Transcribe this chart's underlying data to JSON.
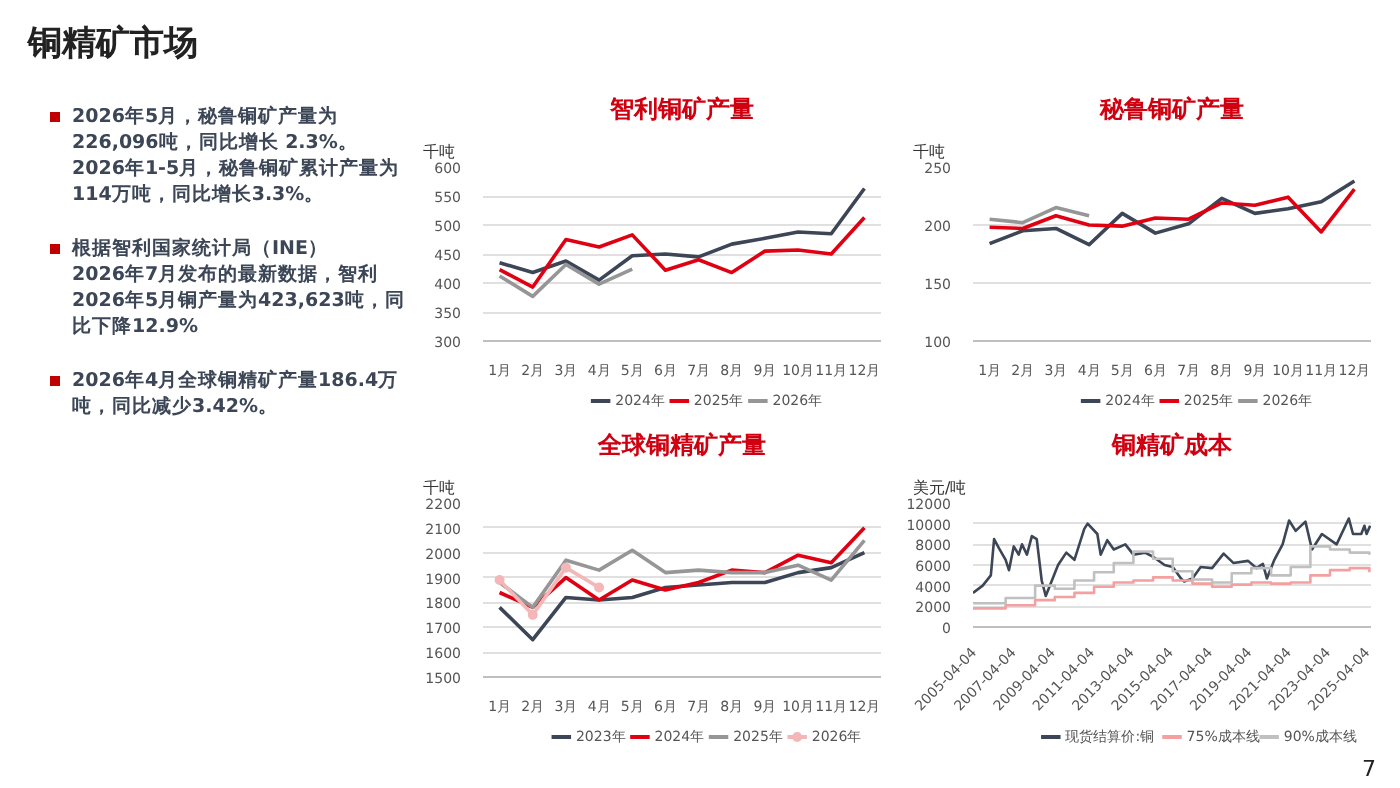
{
  "chart_data": [
    {
      "type": "other",
      "title": "铜精矿市场",
      "annotations": [
        "2026年5月，秘鲁铜矿产量为226,096吨，同比增长 2.3%。\n2026年1-5月，秘鲁铜矿累计产量为 114万吨，同比增长3.3%。",
        "根据智利国家统计局（INE）\n2026年7月发布的最新数据，智利2026年5月铜产量为423,623吨，同比下降12.9%",
        "2026年4月全球铜精矿产量186.4万吨，同比减少3.42%。",
        "7"
      ]
    },
    {
      "type": "line",
      "title": "智利铜矿产量",
      "ylabel": "千吨",
      "categories": [
        "1月",
        "2月",
        "3月",
        "4月",
        "5月",
        "6月",
        "7月",
        "8月",
        "9月",
        "10月",
        "11月",
        "12月"
      ],
      "ylim": [
        300,
        600
      ],
      "yticks": [
        300,
        350,
        400,
        450,
        500,
        550,
        600
      ],
      "grid": "y",
      "legend": "bottom",
      "series": [
        {
          "name": "2024年",
          "color": "#3c4656",
          "values": [
            435,
            418,
            438,
            405,
            447,
            450,
            445,
            467,
            477,
            488,
            485,
            563
          ]
        },
        {
          "name": "2025年",
          "color": "#e00012",
          "values": [
            423,
            393,
            475,
            462,
            483,
            422,
            440,
            418,
            455,
            457,
            450,
            513
          ]
        },
        {
          "name": "2026年",
          "color": "#969696",
          "values": [
            412,
            377,
            432,
            398,
            424,
            null,
            null,
            null,
            null,
            null,
            null,
            null
          ]
        }
      ]
    },
    {
      "type": "line",
      "title": "秘鲁铜矿产量",
      "ylabel": "千吨",
      "categories": [
        "1月",
        "2月",
        "3月",
        "4月",
        "5月",
        "6月",
        "7月",
        "8月",
        "9月",
        "10月",
        "11月",
        "12月"
      ],
      "ylim": [
        100,
        250
      ],
      "yticks": [
        100,
        150,
        200,
        250
      ],
      "grid": "y",
      "legend": "bottom",
      "series": [
        {
          "name": "2024年",
          "color": "#3c4656",
          "values": [
            184,
            195,
            197,
            183,
            210,
            193,
            201,
            223,
            210,
            214,
            220,
            238
          ]
        },
        {
          "name": "2025年",
          "color": "#e00012",
          "values": [
            198,
            197,
            208,
            200,
            199,
            206,
            205,
            219,
            217,
            224,
            194,
            231
          ]
        },
        {
          "name": "2026年",
          "color": "#969696",
          "values": [
            205,
            202,
            215,
            208,
            null,
            null,
            null,
            null,
            null,
            null,
            null,
            null
          ]
        }
      ]
    },
    {
      "type": "line",
      "title": "全球铜精矿产量",
      "ylabel": "千吨",
      "categories": [
        "1月",
        "2月",
        "3月",
        "4月",
        "5月",
        "6月",
        "7月",
        "8月",
        "9月",
        "10月",
        "11月",
        "12月"
      ],
      "ylim": [
        1500,
        2200
      ],
      "yticks": [
        1500,
        1600,
        1700,
        1800,
        1900,
        2000,
        2100,
        2200
      ],
      "grid": "y",
      "legend": "bottom",
      "series": [
        {
          "name": "2023年",
          "color": "#3c4656",
          "values": [
            1780,
            1650,
            1820,
            1810,
            1820,
            1860,
            1870,
            1880,
            1880,
            1920,
            1940,
            2000
          ]
        },
        {
          "name": "2024年",
          "color": "#e00012",
          "values": [
            1840,
            1780,
            1900,
            1810,
            1890,
            1850,
            1880,
            1930,
            1920,
            1990,
            1960,
            2100
          ]
        },
        {
          "name": "2025年",
          "color": "#969696",
          "values": [
            1880,
            1780,
            1970,
            1930,
            2010,
            1920,
            1930,
            1920,
            1920,
            1950,
            1890,
            2050
          ]
        },
        {
          "name": "2026年",
          "color": "#f4b6b6",
          "marker": "circle",
          "values": [
            1890,
            1750,
            1940,
            1860,
            null,
            null,
            null,
            null,
            null,
            null,
            null,
            null
          ]
        }
      ]
    },
    {
      "type": "line",
      "title": "铜精矿成本",
      "ylabel": "美元/吨",
      "xlim": [
        "2005-04-04",
        "2025-07-01"
      ],
      "xticks": [
        "2005-04-04",
        "2007-04-04",
        "2009-04-04",
        "2011-04-04",
        "2013-04-04",
        "2015-04-04",
        "2017-04-04",
        "2019-04-04",
        "2021-04-04",
        "2023-04-04",
        "2025-04-04"
      ],
      "ylim": [
        0,
        12000
      ],
      "yticks": [
        0,
        2000,
        4000,
        6000,
        8000,
        10000,
        12000
      ],
      "grid": "y",
      "legend": "bottom",
      "series": [
        {
          "name": "现货结算价:铜",
          "type": "line",
          "color": "#3c4656",
          "x": [
            "2005-04-04",
            "2005-10-01",
            "2006-03-01",
            "2006-05-01",
            "2006-08-01",
            "2006-12-01",
            "2007-02-01",
            "2007-05-01",
            "2007-08-01",
            "2007-10-01",
            "2008-01-01",
            "2008-04-01",
            "2008-07-01",
            "2008-10-01",
            "2008-12-15",
            "2009-03-01",
            "2009-08-01",
            "2010-01-01",
            "2010-06-01",
            "2010-12-01",
            "2011-02-01",
            "2011-08-01",
            "2011-10-01",
            "2012-02-01",
            "2012-06-01",
            "2013-01-01",
            "2013-06-01",
            "2014-01-01",
            "2014-06-01",
            "2015-01-01",
            "2015-06-01",
            "2015-11-01",
            "2016-01-01",
            "2016-06-01",
            "2016-11-01",
            "2017-06-01",
            "2018-01-01",
            "2018-07-01",
            "2019-04-01",
            "2019-09-01",
            "2020-01-01",
            "2020-03-15",
            "2020-08-01",
            "2021-01-01",
            "2021-05-01",
            "2021-09-01",
            "2022-03-01",
            "2022-07-01",
            "2023-01-01",
            "2023-10-01",
            "2024-05-15",
            "2024-08-01",
            "2025-01-01",
            "2025-03-01",
            "2025-04-10",
            "2025-06-15"
          ],
          "values": [
            3300,
            4000,
            5000,
            8500,
            7600,
            6500,
            5500,
            7800,
            7000,
            8000,
            7000,
            8800,
            8500,
            4500,
            3000,
            4000,
            6000,
            7200,
            6500,
            9500,
            10000,
            9000,
            7000,
            8400,
            7500,
            8000,
            7000,
            7200,
            6800,
            6000,
            5800,
            4700,
            4400,
            4700,
            5800,
            5700,
            7100,
            6200,
            6400,
            5700,
            6100,
            4700,
            6500,
            8000,
            10300,
            9300,
            10200,
            7500,
            9000,
            8000,
            10500,
            9000,
            9000,
            9800,
            9000,
            9800
          ]
        },
        {
          "name": "75%成本线",
          "type": "step",
          "color": "#f4a0a0",
          "x": [
            "2005-04-04",
            "2006-12-01",
            "2008-06-01",
            "2009-06-01",
            "2010-06-01",
            "2011-06-01",
            "2012-06-01",
            "2013-06-01",
            "2014-06-01",
            "2015-06-01",
            "2016-06-01",
            "2017-06-01",
            "2018-06-01",
            "2019-06-01",
            "2020-06-01",
            "2021-06-01",
            "2022-06-01",
            "2023-06-01",
            "2024-06-01",
            "2025-06-01"
          ],
          "values": [
            1800,
            2100,
            2600,
            2900,
            3300,
            3900,
            4300,
            4500,
            4800,
            4500,
            4200,
            3900,
            4100,
            4300,
            4200,
            4300,
            5000,
            5500,
            5700,
            5300
          ]
        },
        {
          "name": "90%成本线",
          "type": "step",
          "color": "#c0c0c0",
          "x": [
            "2005-04-04",
            "2006-12-01",
            "2008-06-01",
            "2009-06-01",
            "2010-06-01",
            "2011-06-01",
            "2012-06-01",
            "2013-06-01",
            "2014-06-01",
            "2015-06-01",
            "2016-06-01",
            "2017-06-01",
            "2018-06-01",
            "2019-06-01",
            "2020-06-01",
            "2021-06-01",
            "2022-06-01",
            "2023-06-01",
            "2024-06-01",
            "2025-06-01"
          ],
          "values": [
            2300,
            2800,
            4000,
            3700,
            4500,
            5300,
            6200,
            7300,
            6600,
            5400,
            4600,
            4300,
            5200,
            5700,
            5000,
            5800,
            7800,
            7500,
            7200,
            7000
          ]
        }
      ]
    }
  ]
}
